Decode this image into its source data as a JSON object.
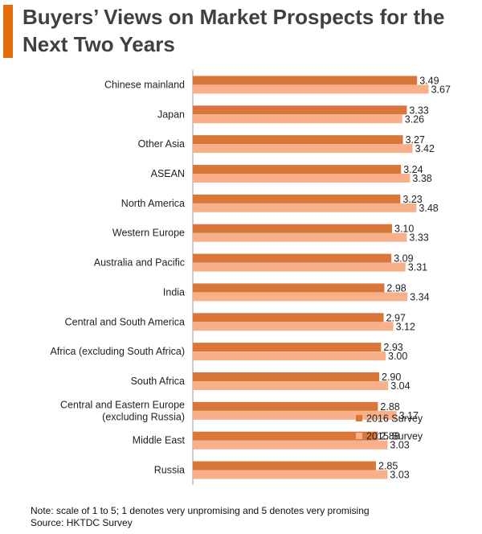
{
  "title": "Buyers’ Views on Market Prospects for the Next Two Years",
  "footnote": {
    "note": "Note: scale of 1 to 5; 1 denotes very unpromising and 5 denotes very promising",
    "source": "Source: HKTDC Survey"
  },
  "colors": {
    "accent": "#e46c0a",
    "series_2016": "#d9773a",
    "series_2015": "#f7b08a"
  },
  "chart_data": {
    "type": "bar",
    "orientation": "horizontal",
    "title": "Buyers’ Views on Market Prospects for the Next Two Years",
    "xlabel": "",
    "ylabel": "",
    "xlim": [
      0,
      3.7
    ],
    "grid": false,
    "legend": "bottom-right",
    "categories": [
      "Chinese mainland",
      "Japan",
      "Other Asia",
      "ASEAN",
      "North America",
      "Western Europe",
      "Australia and Pacific",
      "India",
      "Central and South America",
      "Africa (excluding South Africa)",
      "South Africa",
      "Central and Eastern Europe\n(excluding Russia)",
      "Middle East",
      "Russia"
    ],
    "series": [
      {
        "name": "2016 Survey",
        "color": "#d9773a",
        "values": [
          3.49,
          3.33,
          3.27,
          3.24,
          3.23,
          3.1,
          3.09,
          2.98,
          2.97,
          2.93,
          2.9,
          2.88,
          2.88,
          2.85
        ],
        "labels": [
          "3.49",
          "3.33",
          "3.27",
          "3.24",
          "3.23",
          "3.10",
          "3.09",
          "2.98",
          "2.97",
          "2.93",
          "2.90",
          "2.88",
          "2.88",
          "2.85"
        ]
      },
      {
        "name": "2015 Survey",
        "color": "#f7b08a",
        "values": [
          3.67,
          3.26,
          3.42,
          3.38,
          3.48,
          3.33,
          3.31,
          3.34,
          3.12,
          3.0,
          3.04,
          3.17,
          3.03,
          3.03
        ],
        "labels": [
          "3.67",
          "3.26",
          "3.42",
          "3.38",
          "3.48",
          "3.33",
          "3.31",
          "3.34",
          "3.12",
          "3.00",
          "3.04",
          "3.17",
          "3.03",
          "3.03"
        ]
      }
    ]
  }
}
